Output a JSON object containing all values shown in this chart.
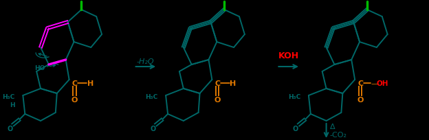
{
  "bg_color": "#000000",
  "teal": "#006868",
  "orange": "#E07800",
  "green": "#00BB00",
  "magenta": "#FF00FF",
  "red": "#FF0000",
  "reaction1_label": "-H₂O",
  "reaction2_label": "KOH",
  "reaction3_label_1": "Δ",
  "reaction3_label_2": "-CO₂"
}
